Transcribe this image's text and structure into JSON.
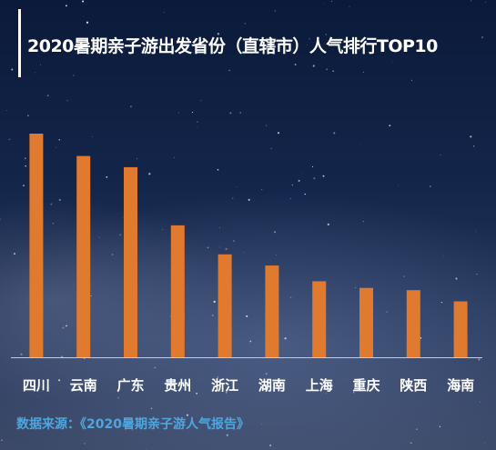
{
  "chart_data": {
    "type": "bar",
    "title": "2020暑期亲子游出发省份（直辖市）人气排行TOP10",
    "categories": [
      "四川",
      "云南",
      "广东",
      "贵州",
      "浙江",
      "湖南",
      "上海",
      "重庆",
      "陕西",
      "海南"
    ],
    "values": [
      100,
      90,
      85,
      59,
      46,
      41,
      34,
      31,
      30,
      25
    ],
    "xlabel": "",
    "ylabel": "",
    "ylim": [
      0,
      100
    ],
    "grid": false,
    "legend": "none",
    "bar_color": "#e07a2e",
    "axis_color": "#c8ccd6"
  },
  "source": "数据来源：《2020暑期亲子游人气报告》"
}
